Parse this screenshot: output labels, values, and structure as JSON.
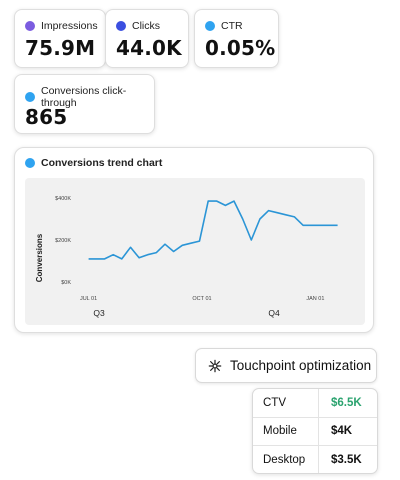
{
  "kpis": [
    {
      "label": "Impressions",
      "value": "75.9M",
      "color": "#7b5ce0"
    },
    {
      "label": "Clicks",
      "value": "44.0K",
      "color": "#3b4fe0"
    },
    {
      "label": "CTR",
      "value": "0.05%",
      "color": "#2fa3f0"
    },
    {
      "label": "Conversions click-through",
      "value": "865",
      "color": "#2fa3f0"
    }
  ],
  "chart": {
    "title": "Conversions trend chart",
    "dot_color": "#2fa3f0",
    "line_color": "#2b95d6"
  },
  "chart_data": {
    "type": "line",
    "title": "Conversions trend chart",
    "xlabel": "",
    "ylabel": "Conversions",
    "y_tick_labels": [
      "$0K",
      "$200K",
      "$400K"
    ],
    "ylim": [
      0,
      400
    ],
    "x_tick_labels": [
      "JUL 01",
      "OCT 01",
      "JAN 01"
    ],
    "quarter_labels": [
      "Q3",
      "Q4"
    ],
    "grid": false,
    "series": [
      {
        "x": [
          "2023-07-01",
          "2023-07-07",
          "2023-07-14",
          "2023-07-21",
          "2023-07-28",
          "2023-08-04",
          "2023-08-11",
          "2023-08-18",
          "2023-08-25",
          "2023-09-01",
          "2023-09-08",
          "2023-09-15",
          "2023-09-22",
          "2023-09-29",
          "2023-10-06",
          "2023-10-13",
          "2023-10-20",
          "2023-10-27",
          "2023-11-03",
          "2023-11-10",
          "2023-11-17",
          "2023-11-24",
          "2023-12-01",
          "2023-12-08",
          "2023-12-15",
          "2023-12-22",
          "2023-12-29",
          "2024-01-05",
          "2024-01-12",
          "2024-01-19"
        ],
        "values": [
          110,
          110,
          110,
          130,
          110,
          165,
          115,
          130,
          140,
          180,
          145,
          175,
          185,
          195,
          385,
          385,
          365,
          385,
          300,
          200,
          300,
          340,
          330,
          320,
          310,
          270,
          270,
          270,
          270,
          270
        ]
      }
    ]
  },
  "touchpoint": {
    "label": "Touchpoint optimization"
  },
  "table": {
    "rows": [
      {
        "label": "CTV",
        "value": "$6.5K",
        "highlight_color": "#2ba36f"
      },
      {
        "label": "Mobile",
        "value": "$4K"
      },
      {
        "label": "Desktop",
        "value": "$3.5K"
      }
    ]
  }
}
